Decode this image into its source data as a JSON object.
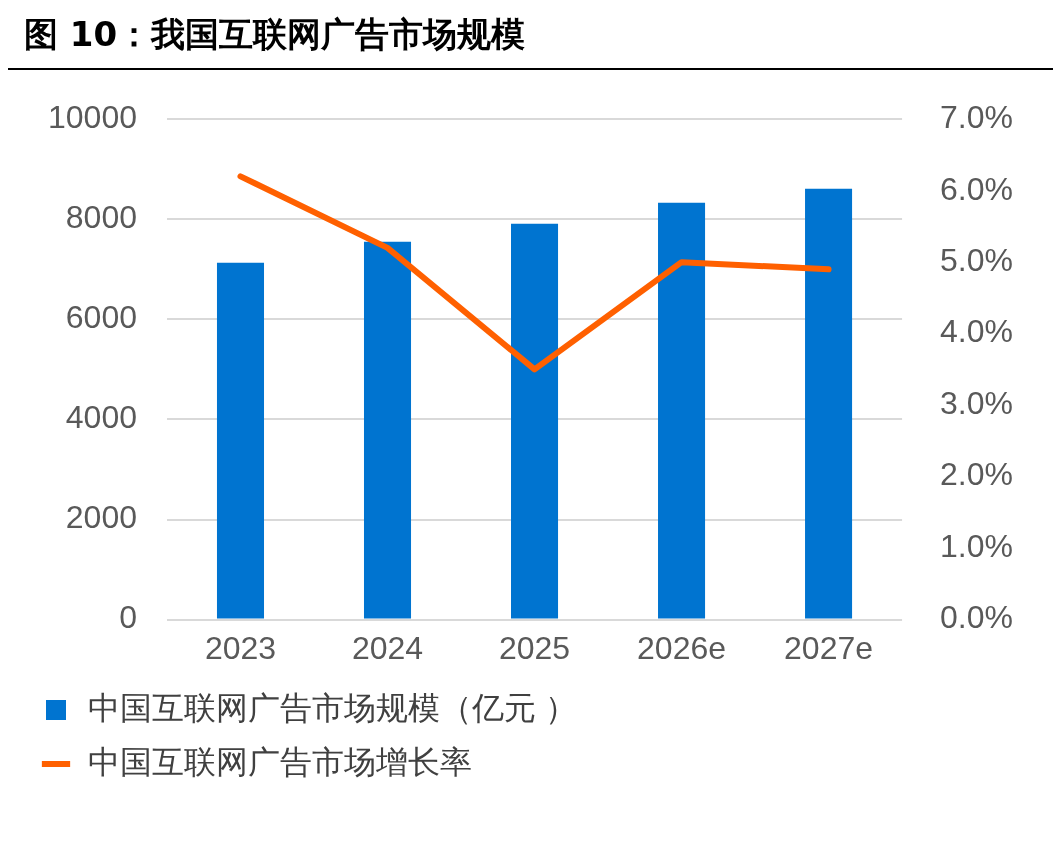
{
  "chart_data": {
    "type": "bar",
    "title": "图 10：我国互联网广告市场规模",
    "categories": [
      "2023",
      "2024",
      "2025",
      "2026e",
      "2027e"
    ],
    "series": [
      {
        "name": "中国互联网广告市场规模（亿元 ）",
        "color": "#0074d0",
        "values": [
          7130,
          7550,
          7910,
          8330,
          8610
        ]
      },
      {
        "name": "中国互联网广告市场增长率",
        "type": "line",
        "axis": "y2",
        "color": "#ff6000",
        "values": [
          6.2,
          5.2,
          3.5,
          5.0,
          4.9
        ]
      }
    ],
    "ylim": [
      0,
      10000
    ],
    "yticks": [
      0,
      2000,
      4000,
      6000,
      8000,
      10000
    ],
    "y2lim": [
      0,
      7
    ],
    "y2ticks": [
      {
        "value": 0,
        "label": "0.0%"
      },
      {
        "value": 1,
        "label": "1.0%"
      },
      {
        "value": 2,
        "label": "2.0%"
      },
      {
        "value": 3,
        "label": "3.0%"
      },
      {
        "value": 4,
        "label": "4.0%"
      },
      {
        "value": 5,
        "label": "5.0%"
      },
      {
        "value": 6,
        "label": "6.0%"
      },
      {
        "value": 7,
        "label": "7.0%"
      }
    ],
    "grid": "y",
    "legend": "bottom",
    "marker": "none",
    "line_style": "solid"
  }
}
